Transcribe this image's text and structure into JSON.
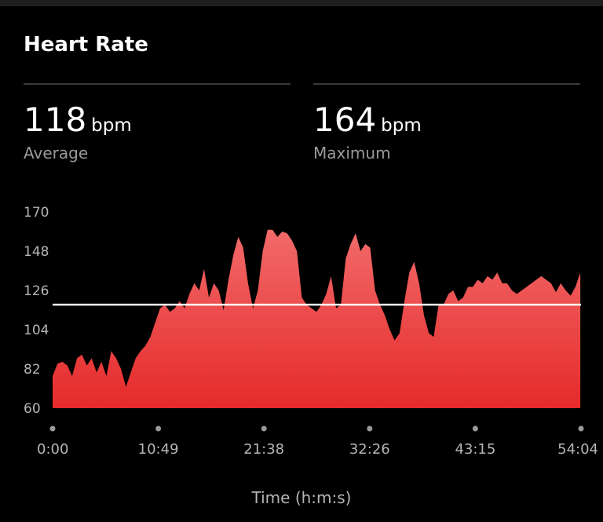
{
  "header": {
    "title": "Heart Rate"
  },
  "stats": [
    {
      "value": "118",
      "unit": "bpm",
      "label": "Average"
    },
    {
      "value": "164",
      "unit": "bpm",
      "label": "Maximum"
    }
  ],
  "colors": {
    "background": "#000000",
    "area_top": "#f26a6a",
    "area_bottom": "#e52a2a",
    "average_line": "#ffffff",
    "tick_text": "#b5b5b5"
  },
  "chart_data": {
    "type": "area",
    "xlabel": "Time (h:m:s)",
    "ylabel": "",
    "x_ticks": [
      "0:00",
      "10:49",
      "21:38",
      "32:26",
      "43:15",
      "54:04"
    ],
    "y_ticks": [
      60,
      82,
      104,
      126,
      148,
      170
    ],
    "ylim": [
      60,
      170
    ],
    "xlim_minutes": [
      0,
      54.07
    ],
    "grid": false,
    "average_line": 118,
    "series": [
      {
        "x_minutes": [
          0,
          0.5,
          1,
          1.5,
          2,
          2.5,
          3,
          3.5,
          4,
          4.5,
          5,
          5.5,
          6,
          6.5,
          7,
          7.5,
          8,
          8.5,
          9,
          9.5,
          10,
          10.5,
          11,
          11.5,
          12,
          12.5,
          13,
          13.5,
          14,
          14.5,
          15,
          15.5,
          16,
          16.5,
          17,
          17.5,
          18,
          18.5,
          19,
          19.5,
          20,
          20.5,
          21,
          21.5,
          22,
          22.5,
          23,
          23.5,
          24,
          24.5,
          25,
          25.5,
          26,
          26.5,
          27,
          27.5,
          28,
          28.5,
          29,
          29.5,
          30,
          30.5,
          31,
          31.5,
          32,
          32.5,
          33,
          33.5,
          34,
          34.5,
          35,
          35.5,
          36,
          36.5,
          37,
          37.5,
          38,
          38.5,
          39,
          39.5,
          40,
          40.5,
          41,
          41.5,
          42,
          42.5,
          43,
          43.5,
          44,
          44.5,
          45,
          45.5,
          46,
          46.5,
          47,
          47.5,
          48,
          48.5,
          49,
          49.5,
          50,
          50.5,
          51,
          51.5,
          52,
          52.5,
          53,
          53.5,
          54
        ],
        "values": [
          78,
          85,
          86,
          84,
          78,
          88,
          90,
          84,
          88,
          80,
          86,
          78,
          92,
          88,
          82,
          72,
          80,
          88,
          92,
          95,
          100,
          108,
          116,
          118,
          114,
          116,
          120,
          116,
          124,
          130,
          126,
          138,
          122,
          130,
          126,
          115,
          132,
          146,
          156,
          150,
          130,
          116,
          126,
          148,
          160,
          160,
          156,
          159,
          158,
          154,
          148,
          122,
          118,
          116,
          114,
          118,
          124,
          134,
          116,
          118,
          144,
          152,
          158,
          148,
          152,
          150,
          126,
          118,
          112,
          104,
          98,
          102,
          120,
          136,
          142,
          130,
          112,
          102,
          100,
          118,
          118,
          124,
          126,
          120,
          122,
          128,
          128,
          132,
          130,
          134,
          132,
          136,
          130,
          130,
          126,
          124,
          126,
          128,
          130,
          132,
          134,
          132,
          130,
          125,
          130,
          126,
          123,
          128,
          136
        ]
      }
    ]
  }
}
